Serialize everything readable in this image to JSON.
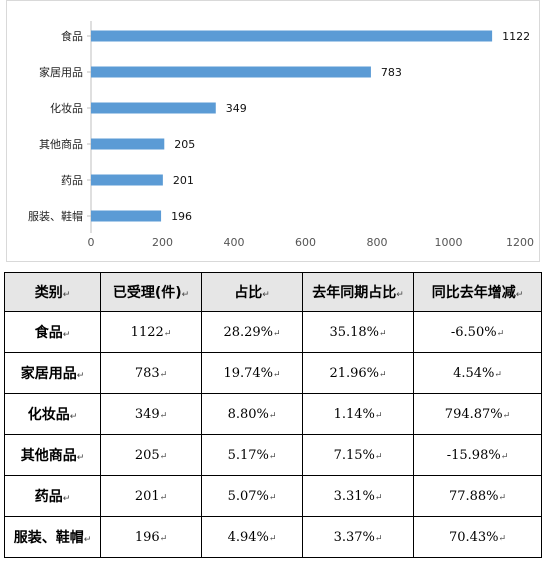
{
  "chart_data": {
    "type": "bar",
    "orientation": "horizontal",
    "categories": [
      "食品",
      "家居用品",
      "化妆品",
      "其他商品",
      "药品",
      "服装、鞋帽"
    ],
    "values": [
      1122,
      783,
      349,
      205,
      201,
      196
    ],
    "xlim": [
      0,
      1200
    ],
    "xticks": [
      "0",
      "200",
      "400",
      "600",
      "800",
      "1000",
      "1200"
    ],
    "grid": false,
    "bar_color": "#5b9bd5"
  },
  "table": {
    "headers": [
      "类别",
      "已受理(件)",
      "占比",
      "去年同期占比",
      "同比去年增减"
    ],
    "rows": [
      [
        "食品",
        "1122",
        "28.29%",
        "35.18%",
        "-6.50%"
      ],
      [
        "家居用品",
        "783",
        "19.74%",
        "21.96%",
        "4.54%"
      ],
      [
        "化妆品",
        "349",
        "8.80%",
        "1.14%",
        "794.87%"
      ],
      [
        "其他商品",
        "205",
        "5.17%",
        "7.15%",
        "-15.98%"
      ],
      [
        "药品",
        "201",
        "5.07%",
        "3.31%",
        "77.88%"
      ],
      [
        "服装、鞋帽",
        "196",
        "4.94%",
        "3.37%",
        "70.43%"
      ]
    ],
    "header_bg": "#e6e6e6"
  }
}
